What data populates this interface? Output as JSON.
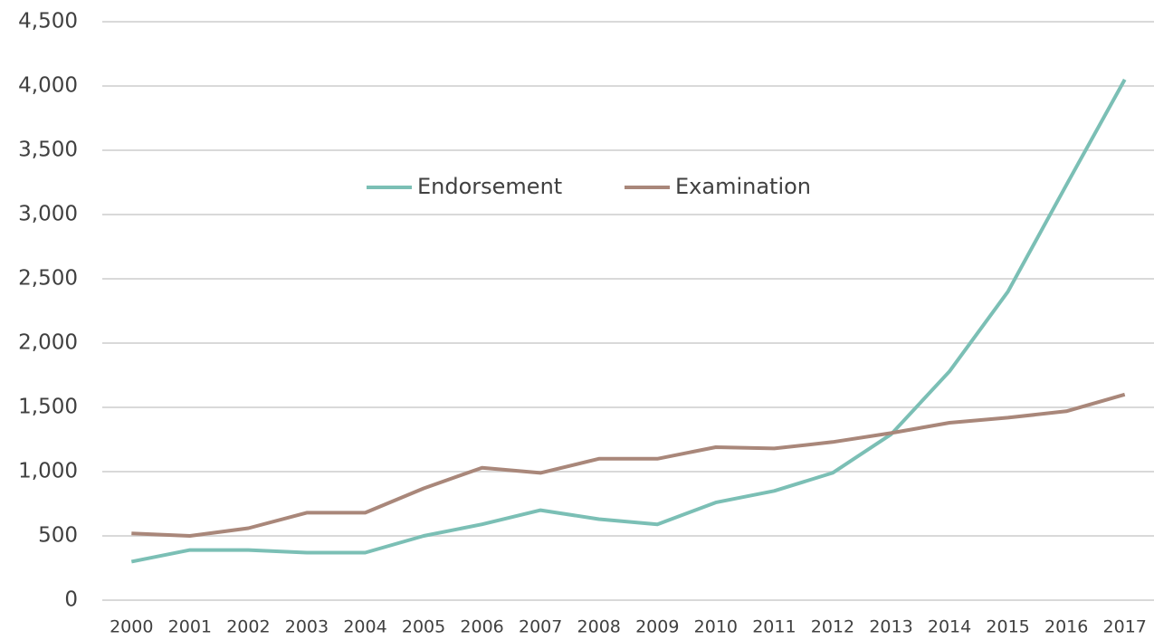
{
  "chart_data": {
    "type": "line",
    "categories": [
      "2000",
      "2001",
      "2002",
      "2003",
      "2004",
      "2005",
      "2006",
      "2007",
      "2008",
      "2009",
      "2010",
      "2011",
      "2012",
      "2013",
      "2014",
      "2015",
      "2016",
      "2017"
    ],
    "series": [
      {
        "name": "Endorsement",
        "color": "#7bbfb5",
        "values": [
          300,
          390,
          390,
          370,
          370,
          500,
          590,
          700,
          630,
          590,
          760,
          850,
          990,
          1290,
          1780,
          2400,
          3230,
          4050
        ]
      },
      {
        "name": "Examination",
        "color": "#a9877a",
        "values": [
          520,
          500,
          560,
          680,
          680,
          870,
          1030,
          990,
          1100,
          1100,
          1190,
          1180,
          1230,
          1300,
          1380,
          1420,
          1470,
          1600
        ]
      }
    ],
    "ylim": [
      0,
      4500
    ],
    "yticks": [
      0,
      500,
      {
        "value": 1000,
        "label": "1,000"
      },
      {
        "value": 1500,
        "label": "1,500"
      },
      {
        "value": 2000,
        "label": "2,000"
      },
      {
        "value": 2500,
        "label": "2,500"
      },
      {
        "value": 3000,
        "label": "3,000"
      },
      {
        "value": 3500,
        "label": "3,500"
      },
      {
        "value": 4000,
        "label": "4,000"
      },
      {
        "value": 4500,
        "label": "4,500"
      }
    ],
    "grid": true,
    "legend": "top"
  }
}
